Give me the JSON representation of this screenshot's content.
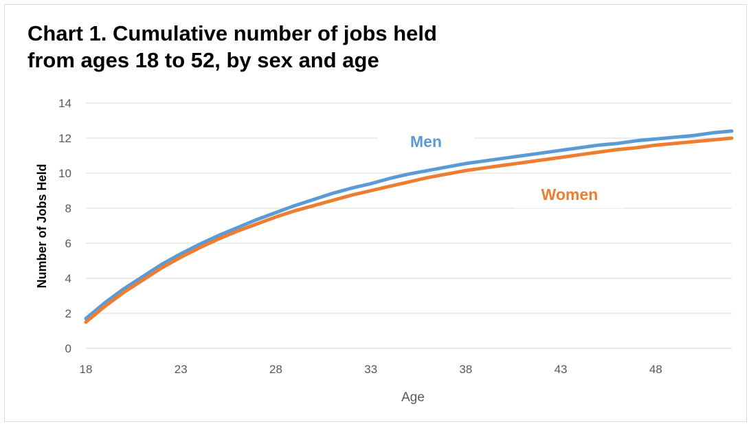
{
  "chart_data": {
    "type": "line",
    "title_line1": "Chart 1. Cumulative number of jobs held",
    "title_line2": "from ages 18 to 52, by sex and age",
    "xlabel": "Age",
    "ylabel": "Number of Jobs Held",
    "xlim": [
      18,
      52
    ],
    "ylim": [
      0,
      14
    ],
    "x_ticks": [
      18,
      23,
      28,
      33,
      38,
      43,
      48
    ],
    "y_ticks": [
      0,
      2,
      4,
      6,
      8,
      10,
      12,
      14
    ],
    "grid": true,
    "x": [
      18,
      19,
      20,
      21,
      22,
      23,
      24,
      25,
      26,
      27,
      28,
      29,
      30,
      31,
      32,
      33,
      34,
      35,
      36,
      37,
      38,
      39,
      40,
      41,
      42,
      43,
      44,
      45,
      46,
      47,
      48,
      49,
      50,
      51,
      52
    ],
    "series": [
      {
        "name": "Men",
        "color": "#5b9bd5",
        "values": [
          1.7,
          2.6,
          3.4,
          4.1,
          4.8,
          5.4,
          5.95,
          6.45,
          6.9,
          7.35,
          7.75,
          8.15,
          8.5,
          8.85,
          9.15,
          9.4,
          9.7,
          9.95,
          10.15,
          10.35,
          10.55,
          10.7,
          10.85,
          11.0,
          11.15,
          11.3,
          11.45,
          11.6,
          11.7,
          11.85,
          11.95,
          12.05,
          12.15,
          12.3,
          12.4
        ]
      },
      {
        "name": "Women",
        "color": "#ed7d31",
        "values": [
          1.5,
          2.4,
          3.2,
          3.9,
          4.6,
          5.2,
          5.75,
          6.25,
          6.7,
          7.1,
          7.5,
          7.85,
          8.15,
          8.45,
          8.75,
          9.0,
          9.25,
          9.5,
          9.75,
          9.95,
          10.15,
          10.3,
          10.45,
          10.6,
          10.75,
          10.9,
          11.05,
          11.2,
          11.35,
          11.45,
          11.6,
          11.7,
          11.8,
          11.9,
          12.0
        ]
      }
    ]
  }
}
